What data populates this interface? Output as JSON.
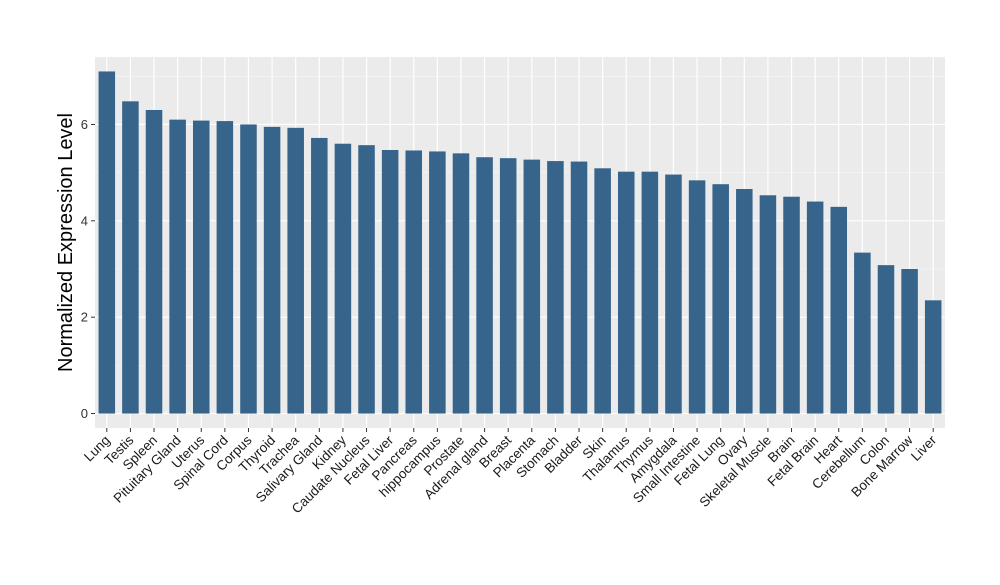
{
  "chart_data": {
    "type": "bar",
    "title": "",
    "xlabel": "",
    "ylabel": "Normalized Expression Level",
    "ylim": [
      -0.3,
      7.4
    ],
    "yticks": [
      0,
      2,
      4,
      6
    ],
    "grid": true,
    "legend": "none",
    "colors": {
      "bar": "#36648B",
      "panel": "#EBEBEB",
      "grid_major": "#FFFFFF",
      "grid_minor": "#F5F5F5"
    },
    "categories": [
      "Lung",
      "Testis",
      "Spleen",
      "Pituitary Gland",
      "Uterus",
      "Spinal Cord",
      "Corpus",
      "Thyroid",
      "Trachea",
      "Salivary Gland",
      "Kidney",
      "Caudate Nucleus",
      "Fetal Liver",
      "Pancreas",
      "hippocampus",
      "Prostate",
      "Adrenal gland",
      "Breast",
      "Placenta",
      "Stomach",
      "Bladder",
      "Skin",
      "Thalamus",
      "Thymus",
      "Amygdala",
      "Small Intestine",
      "Fetal Lung",
      "Ovary",
      "Skeletal Muscle",
      "Brain",
      "Fetal Brain",
      "Heart",
      "Cerebellum",
      "Colon",
      "Bone Marrow",
      "Liver"
    ],
    "values": [
      7.1,
      6.48,
      6.3,
      6.1,
      6.08,
      6.07,
      6.0,
      5.95,
      5.93,
      5.72,
      5.6,
      5.57,
      5.47,
      5.46,
      5.44,
      5.4,
      5.32,
      5.3,
      5.27,
      5.24,
      5.23,
      5.09,
      5.02,
      5.02,
      4.96,
      4.84,
      4.76,
      4.66,
      4.53,
      4.5,
      4.4,
      4.29,
      3.34,
      3.08,
      3.0,
      2.35
    ]
  }
}
